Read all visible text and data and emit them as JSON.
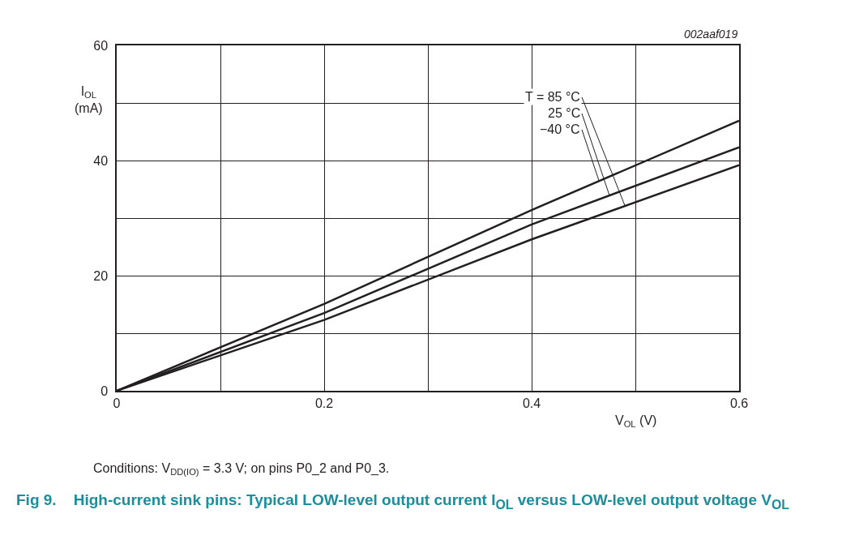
{
  "chart_data": {
    "type": "line",
    "title": "Fig 9.    High-current sink pins: Typical LOW-level output current I$_{OL}$ versus LOW-level output voltage V$_{OL}$",
    "xlabel": "V$_{OL}$ (V)",
    "ylabel": "I$_{OL}$\n(mA)",
    "x": [
      0,
      0.2,
      0.4,
      0.6
    ],
    "series": [
      {
        "name": "−40 °C",
        "color": "#231f20",
        "values": [
          0,
          15.1,
          31.4,
          46.9
        ]
      },
      {
        "name": "25 °C",
        "color": "#231f20",
        "values": [
          0,
          13.5,
          28.9,
          42.3
        ]
      },
      {
        "name": "T = 85 °C",
        "color": "#231f20",
        "values": [
          0,
          12.3,
          26.3,
          39.2
        ]
      }
    ],
    "annotations": [
      "002aaf019",
      "Conditions: V$_{DD(IO)}$ = 3.3 V; on pins P0_2 and P0_3."
    ],
    "xlim": [
      0,
      0.6
    ],
    "xticks": [
      0,
      {
        "value": 0.1,
        "label": null
      },
      0.2,
      {
        "value": 0.3,
        "label": null
      },
      0.4,
      {
        "value": 0.5,
        "label": null
      },
      0.6
    ],
    "ylim": [
      0,
      60
    ],
    "yticks": [
      0,
      {
        "value": 10,
        "label": null
      },
      20,
      {
        "value": 30,
        "label": null
      },
      40,
      {
        "value": 50,
        "label": null
      },
      60
    ],
    "grid": true,
    "legend": false,
    "marker": "none",
    "line_style": "solid"
  }
}
